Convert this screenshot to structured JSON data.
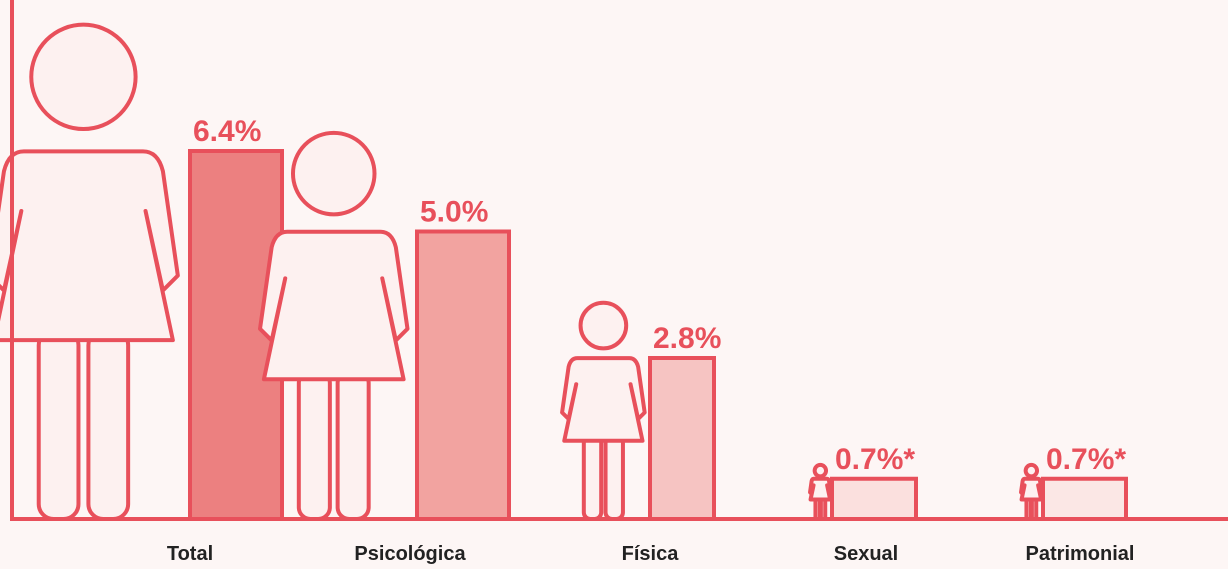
{
  "chart_data": {
    "type": "bar",
    "categories": [
      "Total",
      "Psicológica",
      "Física",
      "Sexual",
      "Patrimonial"
    ],
    "values": [
      6.4,
      5.0,
      2.8,
      0.7,
      0.7
    ],
    "value_labels": [
      "6.4%",
      "5.0%",
      "2.8%",
      "0.7%*",
      "0.7%*"
    ],
    "colors": [
      "#ec8080",
      "#f2a3a0",
      "#f6c4c2",
      "#fbe0de",
      "#fbe7e5"
    ],
    "grid": false
  }
}
